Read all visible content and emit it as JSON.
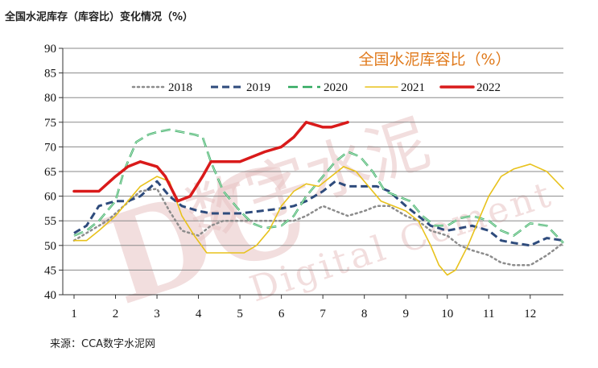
{
  "page_title": "全国水泥库存（库容比）变化情况（%）",
  "source": "来源：CCA数字水泥网",
  "watermark": {
    "line1": "数字水泥",
    "line2": "Digital Cement",
    "logo": "DC"
  },
  "chart_data": {
    "type": "line",
    "title": "全国水泥库容比（%）",
    "ylim": [
      40,
      90
    ],
    "yticks": [
      40,
      45,
      50,
      55,
      60,
      65,
      70,
      75,
      80,
      85,
      90
    ],
    "xlim": [
      1,
      13
    ],
    "xticks": [
      "1",
      "2",
      "3",
      "4",
      "5",
      "6",
      "7",
      "8",
      "9",
      "10",
      "11",
      "12"
    ],
    "legend_position": "top",
    "grid": true,
    "series": [
      {
        "name": "2018",
        "color": "#8c8c8c",
        "style": "dotted",
        "x": [
          1,
          1.4,
          1.8,
          2.2,
          2.6,
          3,
          3.3,
          3.6,
          4,
          4.3,
          4.6,
          5,
          5.5,
          6,
          6.3,
          6.6,
          7,
          7.3,
          7.6,
          8,
          8.3,
          8.6,
          9,
          9.3,
          9.6,
          10,
          10.3,
          10.6,
          11,
          11.3,
          11.6,
          12,
          12.4,
          12.8
        ],
        "y": [
          51,
          53,
          55,
          58,
          61,
          61.5,
          57,
          53,
          52,
          54,
          55,
          55,
          55,
          55,
          55,
          56,
          58,
          57,
          56,
          57,
          58,
          58,
          56,
          55,
          53,
          52,
          50,
          49,
          48,
          46.5,
          46,
          46,
          48,
          50.5
        ]
      },
      {
        "name": "2019",
        "color": "#2e4b7c",
        "style": "dashed",
        "x": [
          1,
          1.3,
          1.6,
          2,
          2.3,
          2.6,
          3,
          3.3,
          3.6,
          4,
          4.3,
          4.6,
          5,
          5.5,
          6,
          6.3,
          6.6,
          7,
          7.3,
          7.6,
          8,
          8.3,
          8.6,
          9,
          9.3,
          9.6,
          10,
          10.3,
          10.6,
          11,
          11.3,
          11.6,
          12,
          12.4,
          12.8
        ],
        "y": [
          52.5,
          54,
          58,
          59,
          59,
          60,
          63,
          60,
          58,
          57,
          56.5,
          56.5,
          56.5,
          57,
          57.5,
          58,
          59,
          61,
          63,
          62,
          62,
          62,
          61,
          58,
          56,
          54,
          53,
          53.5,
          54,
          53,
          51,
          50.5,
          50,
          51.5,
          51
        ]
      },
      {
        "name": "2020",
        "color": "#2ea85e",
        "style": "dashed",
        "x": [
          1,
          1.3,
          1.6,
          2,
          2.2,
          2.5,
          2.8,
          3,
          3.3,
          3.6,
          3.9,
          4.1,
          4.3,
          4.6,
          5,
          5.3,
          5.6,
          6,
          6.3,
          6.6,
          7,
          7.3,
          7.6,
          7.9,
          8.2,
          8.5,
          8.8,
          9.1,
          9.4,
          9.7,
          10,
          10.3,
          10.6,
          11,
          11.3,
          11.6,
          12,
          12.4,
          12.8
        ],
        "y": [
          52,
          53,
          55,
          59,
          65,
          71,
          72.5,
          73,
          73.5,
          73,
          72.5,
          72,
          67,
          61,
          57,
          54.5,
          53.5,
          54,
          56,
          60,
          64,
          67,
          69,
          68,
          65,
          61,
          60,
          59,
          56,
          54,
          54,
          55.5,
          56,
          55,
          53,
          52,
          54.5,
          54,
          50.5
        ]
      },
      {
        "name": "2021",
        "color": "#e8c21c",
        "style": "solid",
        "x": [
          1,
          1.3,
          1.6,
          2,
          2.3,
          2.6,
          3,
          3.3,
          3.6,
          3.9,
          4.2,
          4.5,
          4.8,
          5.1,
          5.4,
          5.7,
          6,
          6.3,
          6.6,
          6.9,
          7.2,
          7.5,
          7.8,
          8.1,
          8.4,
          8.7,
          9,
          9.3,
          9.6,
          9.8,
          10,
          10.2,
          10.5,
          10.8,
          11,
          11.3,
          11.6,
          12,
          12.4,
          12.8
        ],
        "y": [
          51,
          51,
          53,
          56,
          59,
          62,
          64,
          63,
          56,
          52,
          48.5,
          48.5,
          48.5,
          48.5,
          50,
          53,
          58,
          61,
          62.5,
          62,
          64,
          66,
          65,
          62,
          59,
          58,
          57,
          55,
          50,
          46,
          44,
          45,
          50,
          56,
          60,
          64,
          65.5,
          66.5,
          65,
          61.5
        ]
      },
      {
        "name": "2022",
        "color": "#d91a1a",
        "style": "solid",
        "x": [
          1,
          1.3,
          1.6,
          2,
          2.3,
          2.6,
          3,
          3.2,
          3.5,
          3.8,
          4.1,
          4.3,
          4.6,
          5,
          5.3,
          5.6,
          6,
          6.3,
          6.6,
          7,
          7.2,
          7.4,
          7.6
        ],
        "y": [
          61,
          61,
          61,
          64,
          66,
          67,
          66,
          64,
          59,
          60,
          64,
          67,
          67,
          67,
          68,
          69,
          70,
          72,
          75,
          74,
          74,
          74.5,
          75
        ]
      }
    ]
  }
}
